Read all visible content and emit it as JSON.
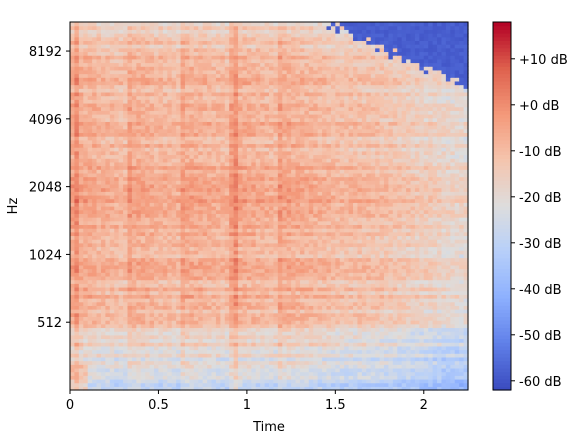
{
  "chart_data": {
    "type": "heatmap",
    "xlabel": "Time",
    "ylabel": "Hz",
    "xlim": [
      0,
      2.25
    ],
    "x_ticks": [
      {
        "value": 0,
        "label": "0"
      },
      {
        "value": 0.5,
        "label": "0.5"
      },
      {
        "value": 1,
        "label": "1"
      },
      {
        "value": 1.5,
        "label": "1.5"
      },
      {
        "value": 2,
        "label": "2"
      }
    ],
    "y_scale": "log2",
    "ylim": [
      256,
      11025
    ],
    "y_ticks": [
      {
        "value": 512,
        "label": "512"
      },
      {
        "value": 1024,
        "label": "1024"
      },
      {
        "value": 2048,
        "label": "2048"
      },
      {
        "value": 4096,
        "label": "4096"
      },
      {
        "value": 8192,
        "label": "8192"
      }
    ],
    "colorbar": {
      "range": [
        -62,
        18
      ],
      "colormap": "coolwarm",
      "ticks": [
        {
          "value": 10,
          "label": "+10 dB"
        },
        {
          "value": 0,
          "label": "+0 dB"
        },
        {
          "value": -10,
          "label": "-10 dB"
        },
        {
          "value": -20,
          "label": "-20 dB"
        },
        {
          "value": -30,
          "label": "-30 dB"
        },
        {
          "value": -40,
          "label": "-40 dB"
        },
        {
          "value": -50,
          "label": "-50 dB"
        },
        {
          "value": -60,
          "label": "-60 dB"
        }
      ]
    },
    "onsets_s": [
      0.02,
      0.34,
      0.64,
      0.92,
      1.19
    ],
    "cutoff_hz_start": 11025,
    "cutoff_hz_end": 5800,
    "cutoff_start_time_s": 1.42,
    "grid": false
  }
}
